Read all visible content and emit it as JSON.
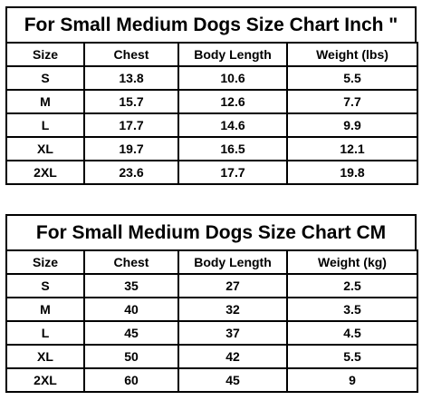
{
  "charts": [
    {
      "title": "For Small Medium Dogs Size Chart Inch \"",
      "headers": [
        "Size",
        "Chest",
        "Body Length",
        "Weight (lbs)"
      ],
      "rows": [
        [
          "S",
          "13.8",
          "10.6",
          "5.5"
        ],
        [
          "M",
          "15.7",
          "12.6",
          "7.7"
        ],
        [
          "L",
          "17.7",
          "14.6",
          "9.9"
        ],
        [
          "XL",
          "19.7",
          "16.5",
          "12.1"
        ],
        [
          "2XL",
          "23.6",
          "17.7",
          "19.8"
        ]
      ]
    },
    {
      "title": "For Small Medium Dogs Size Chart CM",
      "headers": [
        "Size",
        "Chest",
        "Body Length",
        "Weight (kg)"
      ],
      "rows": [
        [
          "S",
          "35",
          "27",
          "2.5"
        ],
        [
          "M",
          "40",
          "32",
          "3.5"
        ],
        [
          "L",
          "45",
          "37",
          "4.5"
        ],
        [
          "XL",
          "50",
          "42",
          "5.5"
        ],
        [
          "2XL",
          "60",
          "45",
          "9"
        ]
      ]
    }
  ]
}
